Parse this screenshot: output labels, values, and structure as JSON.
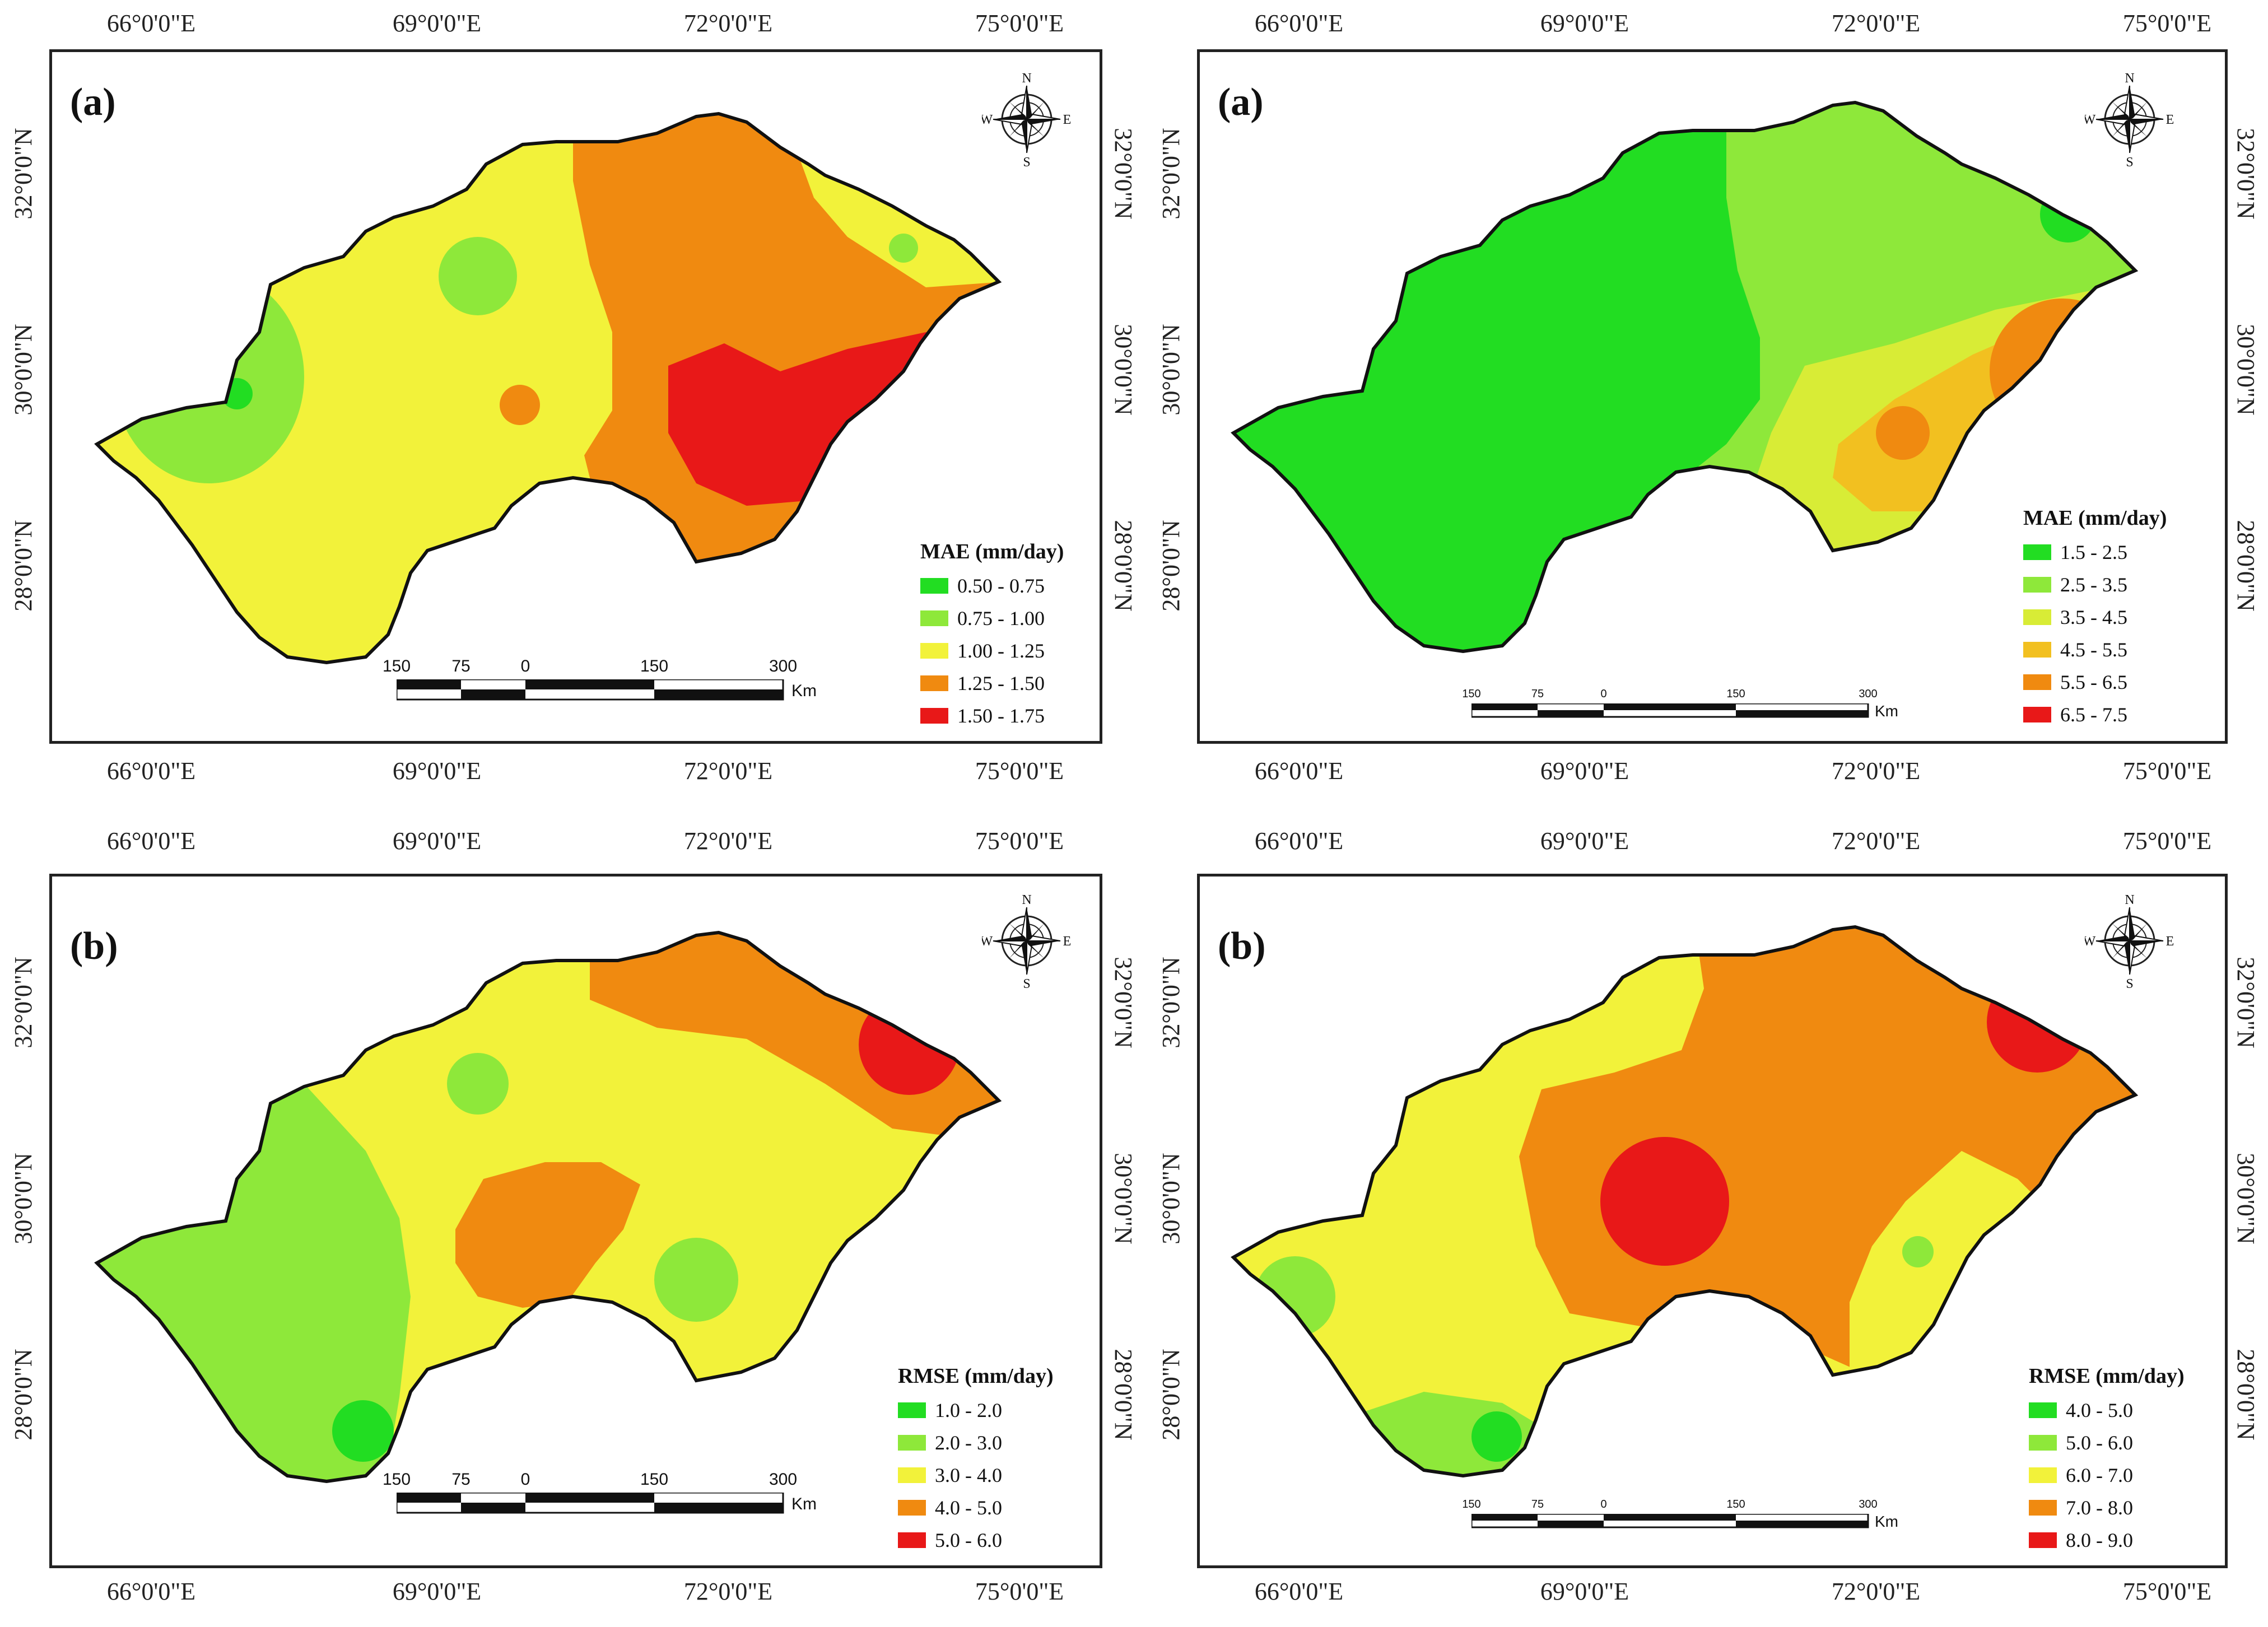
{
  "lon_labels": [
    "66°0'0\"E",
    "69°0'0\"E",
    "72°0'0\"E",
    "75°0'0\"E"
  ],
  "lat_labels": [
    "28°0'0\"N",
    "30°0'0\"N",
    "32°0'0\"N"
  ],
  "compass": {
    "n": "N",
    "s": "S",
    "e": "E",
    "w": "W"
  },
  "scalebar": {
    "ticks": [
      "150",
      "75",
      "0",
      "150",
      "300"
    ],
    "unit": "Km"
  },
  "panels": [
    {
      "label": "(a)",
      "legend_title": "MAE (mm/day)",
      "classes": [
        {
          "range": "0.50 - 0.75",
          "color": "#22dd22"
        },
        {
          "range": "0.75 - 1.00",
          "color": "#8ee83a"
        },
        {
          "range": "1.00 - 1.25",
          "color": "#f2f23a"
        },
        {
          "range": "1.25 - 1.50",
          "color": "#f08a10"
        },
        {
          "range": "1.50 - 1.75",
          "color": "#e81818"
        }
      ]
    },
    {
      "label": "(a)",
      "legend_title": "MAE (mm/day)",
      "classes": [
        {
          "range": "1.5 - 2.5",
          "color": "#22dd22"
        },
        {
          "range": "2.5 - 3.5",
          "color": "#8ee83a"
        },
        {
          "range": "3.5 - 4.5",
          "color": "#d8ec36"
        },
        {
          "range": "4.5 - 5.5",
          "color": "#f2c020"
        },
        {
          "range": "5.5 - 6.5",
          "color": "#f08a10"
        },
        {
          "range": "6.5 - 7.5",
          "color": "#e81818"
        }
      ]
    },
    {
      "label": "(b)",
      "legend_title": "RMSE (mm/day)",
      "classes": [
        {
          "range": "1.0 - 2.0",
          "color": "#22dd22"
        },
        {
          "range": "2.0 - 3.0",
          "color": "#8ee83a"
        },
        {
          "range": "3.0 - 4.0",
          "color": "#f2f23a"
        },
        {
          "range": "4.0 - 5.0",
          "color": "#f08a10"
        },
        {
          "range": "5.0 - 6.0",
          "color": "#e81818"
        }
      ]
    },
    {
      "label": "(b)",
      "legend_title": "RMSE (mm/day)",
      "classes": [
        {
          "range": "4.0 - 5.0",
          "color": "#22dd22"
        },
        {
          "range": "5.0 - 6.0",
          "color": "#8ee83a"
        },
        {
          "range": "6.0 - 7.0",
          "color": "#f2f23a"
        },
        {
          "range": "7.0 - 8.0",
          "color": "#f08a10"
        },
        {
          "range": "8.0 - 9.0",
          "color": "#e81818"
        }
      ]
    }
  ]
}
